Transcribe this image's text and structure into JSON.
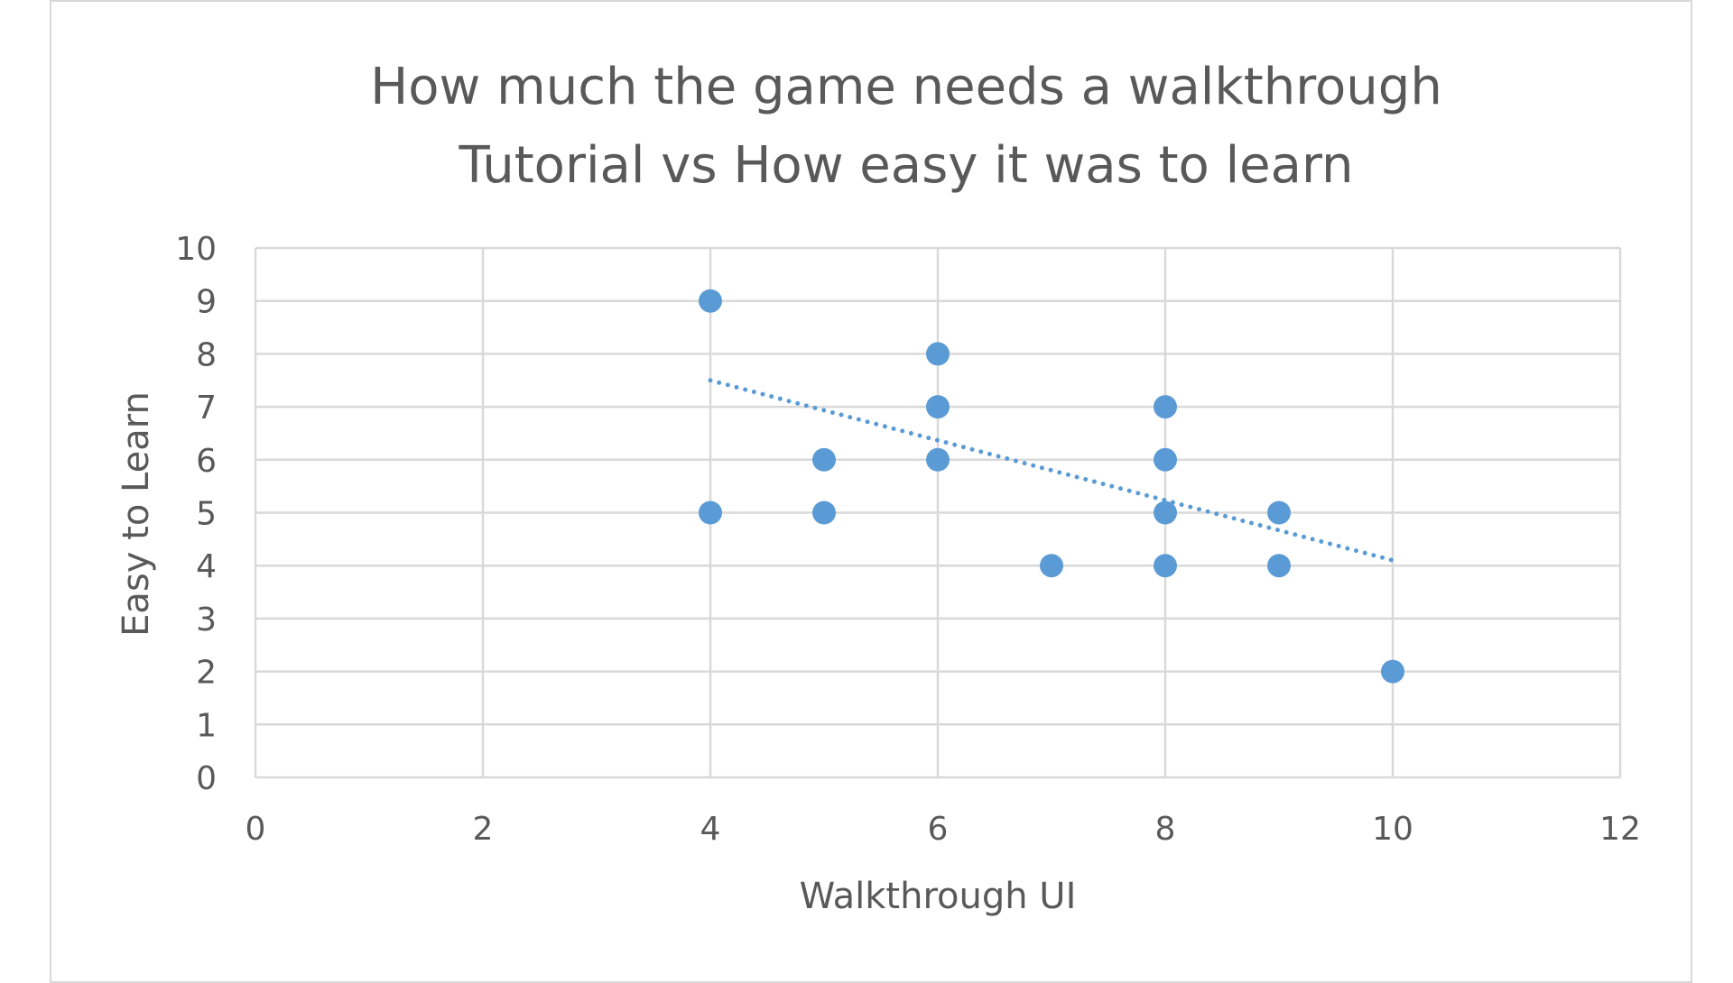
{
  "chart_data": {
    "type": "scatter",
    "title_lines": [
      "How much the game needs a walkthrough",
      "Tutorial vs How easy it was to learn"
    ],
    "xlabel": "Walkthrough UI",
    "ylabel": "Easy to Learn",
    "xlim": [
      0,
      12
    ],
    "ylim": [
      0,
      10
    ],
    "x_ticks": [
      "0",
      "2",
      "4",
      "6",
      "8",
      "10",
      "12"
    ],
    "y_ticks": [
      "0",
      "1",
      "2",
      "3",
      "4",
      "5",
      "6",
      "7",
      "8",
      "9",
      "10"
    ],
    "grid": true,
    "legend": "none",
    "series": [
      {
        "color": "#5b9bd5",
        "points": [
          {
            "x": 4,
            "y": 9
          },
          {
            "x": 4,
            "y": 5
          },
          {
            "x": 5,
            "y": 6
          },
          {
            "x": 5,
            "y": 5
          },
          {
            "x": 6,
            "y": 8
          },
          {
            "x": 6,
            "y": 7
          },
          {
            "x": 6,
            "y": 6
          },
          {
            "x": 7,
            "y": 4
          },
          {
            "x": 8,
            "y": 7
          },
          {
            "x": 8,
            "y": 6
          },
          {
            "x": 8,
            "y": 5
          },
          {
            "x": 8,
            "y": 4
          },
          {
            "x": 9,
            "y": 5
          },
          {
            "x": 9,
            "y": 4
          },
          {
            "x": 10,
            "y": 2
          }
        ]
      }
    ],
    "trendline": {
      "type": "linear",
      "style": "dotted",
      "color": "#5b9bd5",
      "x_start": 4,
      "y_start": 7.5,
      "x_end": 10,
      "y_end": 4.1
    }
  }
}
